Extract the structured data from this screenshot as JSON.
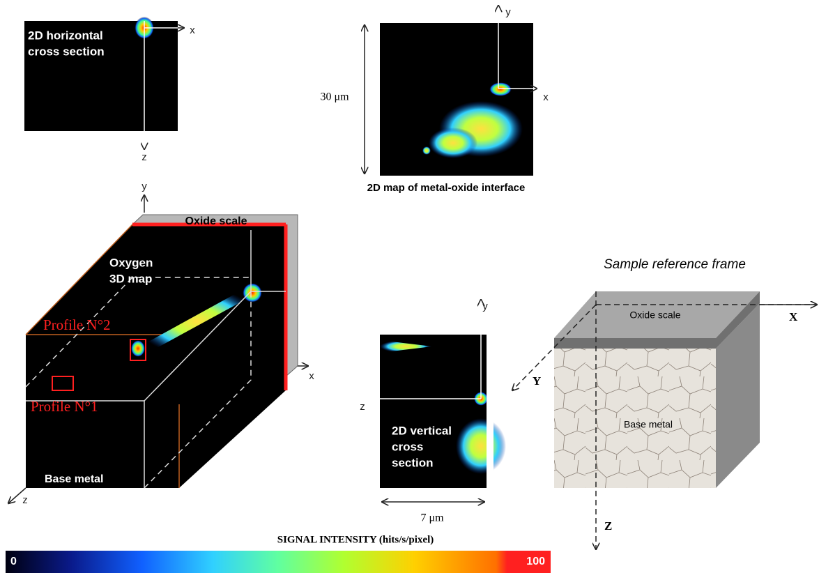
{
  "horizontal_section": {
    "label_lines": [
      "2D horizontal",
      "cross section"
    ],
    "axis_x": "x",
    "axis_z": "z"
  },
  "interface_map": {
    "axis_y": "y",
    "axis_x": "x",
    "scale": "30 μm",
    "caption": "2D map of metal-oxide interface"
  },
  "block_3d": {
    "axis_y": "y",
    "axis_x": "x",
    "axis_z": "z",
    "oxide_label": "Oxide scale",
    "map_label_lines": [
      "Oxygen",
      "3D map"
    ],
    "profile_2": "Profile N°2",
    "profile_1": "Profile N°1",
    "base_label": "Base metal"
  },
  "vertical_section": {
    "axis_y": "y",
    "axis_z": "z",
    "label_lines": [
      "2D vertical",
      "cross",
      "section"
    ],
    "scale": "7 μm"
  },
  "sample_frame": {
    "title": "Sample reference frame",
    "oxide_label": "Oxide scale",
    "base_label": "Base metal",
    "axis_x": "X",
    "axis_y": "Y",
    "axis_z": "Z"
  },
  "colorbar": {
    "title": "SIGNAL INTENSITY (hits/s/pixel)",
    "min_label": "0",
    "max_label": "100"
  }
}
